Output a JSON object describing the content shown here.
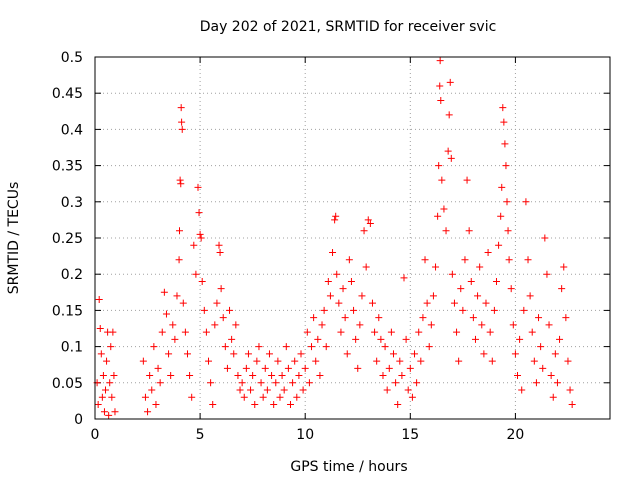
{
  "chart_data": {
    "type": "scatter",
    "title": "Day 202 of 2021, SRMTID for receiver svic",
    "xlabel": "GPS time / hours",
    "ylabel": "SRMTID / TECUs",
    "xlim": [
      0,
      24.5
    ],
    "ylim": [
      0,
      0.5
    ],
    "xticks": [
      0,
      5,
      10,
      15,
      20
    ],
    "xtick_labels": [
      "0",
      "5",
      "10",
      "15",
      "20"
    ],
    "yticks": [
      0,
      0.05,
      0.1,
      0.15,
      0.2,
      0.25,
      0.3,
      0.35,
      0.4,
      0.45,
      0.5
    ],
    "ytick_labels": [
      "0",
      "0.05",
      "0.1",
      "0.15",
      "0.2",
      "0.25",
      "0.3",
      "0.35",
      "0.4",
      "0.45",
      "0.5"
    ],
    "grid": true,
    "marker": "+",
    "series": [
      {
        "name": "SRMTID",
        "color": "#ff0000",
        "points": [
          [
            0.1,
            0.05
          ],
          [
            0.15,
            0.02
          ],
          [
            0.2,
            0.165
          ],
          [
            0.25,
            0.125
          ],
          [
            0.3,
            0.09
          ],
          [
            0.35,
            0.03
          ],
          [
            0.4,
            0.06
          ],
          [
            0.45,
            0.01
          ],
          [
            0.5,
            0.04
          ],
          [
            0.55,
            0.08
          ],
          [
            0.6,
            0.12
          ],
          [
            0.65,
            0.005
          ],
          [
            0.7,
            0.05
          ],
          [
            0.75,
            0.1
          ],
          [
            0.8,
            0.03
          ],
          [
            0.85,
            0.12
          ],
          [
            0.9,
            0.06
          ],
          [
            0.95,
            0.01
          ],
          [
            2.3,
            0.08
          ],
          [
            2.4,
            0.03
          ],
          [
            2.5,
            0.01
          ],
          [
            2.6,
            0.06
          ],
          [
            2.7,
            0.04
          ],
          [
            2.8,
            0.1
          ],
          [
            2.9,
            0.02
          ],
          [
            3.0,
            0.07
          ],
          [
            3.1,
            0.05
          ],
          [
            3.2,
            0.12
          ],
          [
            3.3,
            0.175
          ],
          [
            3.4,
            0.145
          ],
          [
            3.5,
            0.09
          ],
          [
            3.6,
            0.06
          ],
          [
            3.7,
            0.13
          ],
          [
            3.8,
            0.11
          ],
          [
            3.9,
            0.17
          ],
          [
            4.0,
            0.22
          ],
          [
            4.02,
            0.26
          ],
          [
            4.05,
            0.33
          ],
          [
            4.08,
            0.325
          ],
          [
            4.1,
            0.43
          ],
          [
            4.12,
            0.41
          ],
          [
            4.15,
            0.4
          ],
          [
            4.2,
            0.16
          ],
          [
            4.3,
            0.12
          ],
          [
            4.4,
            0.09
          ],
          [
            4.5,
            0.06
          ],
          [
            4.6,
            0.03
          ],
          [
            4.7,
            0.24
          ],
          [
            4.8,
            0.2
          ],
          [
            4.9,
            0.32
          ],
          [
            4.95,
            0.285
          ],
          [
            5.0,
            0.255
          ],
          [
            5.05,
            0.25
          ],
          [
            5.1,
            0.19
          ],
          [
            5.2,
            0.15
          ],
          [
            5.3,
            0.12
          ],
          [
            5.4,
            0.08
          ],
          [
            5.5,
            0.05
          ],
          [
            5.6,
            0.02
          ],
          [
            5.7,
            0.13
          ],
          [
            5.8,
            0.16
          ],
          [
            5.9,
            0.24
          ],
          [
            5.95,
            0.23
          ],
          [
            6.0,
            0.18
          ],
          [
            6.1,
            0.14
          ],
          [
            6.2,
            0.1
          ],
          [
            6.3,
            0.07
          ],
          [
            6.4,
            0.15
          ],
          [
            6.5,
            0.11
          ],
          [
            6.6,
            0.09
          ],
          [
            6.7,
            0.13
          ],
          [
            6.8,
            0.06
          ],
          [
            6.9,
            0.04
          ],
          [
            7.0,
            0.05
          ],
          [
            7.1,
            0.03
          ],
          [
            7.2,
            0.07
          ],
          [
            7.3,
            0.09
          ],
          [
            7.4,
            0.04
          ],
          [
            7.5,
            0.06
          ],
          [
            7.6,
            0.02
          ],
          [
            7.7,
            0.08
          ],
          [
            7.8,
            0.1
          ],
          [
            7.9,
            0.05
          ],
          [
            8.0,
            0.03
          ],
          [
            8.1,
            0.07
          ],
          [
            8.2,
            0.04
          ],
          [
            8.3,
            0.09
          ],
          [
            8.4,
            0.06
          ],
          [
            8.5,
            0.02
          ],
          [
            8.6,
            0.05
          ],
          [
            8.7,
            0.08
          ],
          [
            8.8,
            0.03
          ],
          [
            8.9,
            0.06
          ],
          [
            9.0,
            0.04
          ],
          [
            9.1,
            0.1
          ],
          [
            9.2,
            0.07
          ],
          [
            9.3,
            0.02
          ],
          [
            9.4,
            0.05
          ],
          [
            9.5,
            0.08
          ],
          [
            9.6,
            0.03
          ],
          [
            9.7,
            0.06
          ],
          [
            9.8,
            0.09
          ],
          [
            9.9,
            0.04
          ],
          [
            10.0,
            0.07
          ],
          [
            10.1,
            0.12
          ],
          [
            10.2,
            0.05
          ],
          [
            10.3,
            0.1
          ],
          [
            10.4,
            0.14
          ],
          [
            10.5,
            0.08
          ],
          [
            10.6,
            0.11
          ],
          [
            10.7,
            0.06
          ],
          [
            10.8,
            0.13
          ],
          [
            10.9,
            0.15
          ],
          [
            11.0,
            0.1
          ],
          [
            11.1,
            0.19
          ],
          [
            11.2,
            0.17
          ],
          [
            11.3,
            0.23
          ],
          [
            11.4,
            0.275
          ],
          [
            11.45,
            0.28
          ],
          [
            11.5,
            0.2
          ],
          [
            11.6,
            0.16
          ],
          [
            11.7,
            0.12
          ],
          [
            11.8,
            0.18
          ],
          [
            11.9,
            0.14
          ],
          [
            12.0,
            0.09
          ],
          [
            12.1,
            0.22
          ],
          [
            12.2,
            0.19
          ],
          [
            12.3,
            0.15
          ],
          [
            12.4,
            0.11
          ],
          [
            12.5,
            0.07
          ],
          [
            12.6,
            0.13
          ],
          [
            12.7,
            0.17
          ],
          [
            12.8,
            0.26
          ],
          [
            12.9,
            0.21
          ],
          [
            13.0,
            0.275
          ],
          [
            13.1,
            0.27
          ],
          [
            13.2,
            0.16
          ],
          [
            13.3,
            0.12
          ],
          [
            13.4,
            0.08
          ],
          [
            13.5,
            0.14
          ],
          [
            13.6,
            0.11
          ],
          [
            13.7,
            0.06
          ],
          [
            13.8,
            0.1
          ],
          [
            13.9,
            0.04
          ],
          [
            14.0,
            0.07
          ],
          [
            14.1,
            0.12
          ],
          [
            14.2,
            0.09
          ],
          [
            14.3,
            0.05
          ],
          [
            14.4,
            0.02
          ],
          [
            14.5,
            0.08
          ],
          [
            14.6,
            0.06
          ],
          [
            14.7,
            0.195
          ],
          [
            14.8,
            0.11
          ],
          [
            14.9,
            0.04
          ],
          [
            15.0,
            0.07
          ],
          [
            15.1,
            0.03
          ],
          [
            15.2,
            0.09
          ],
          [
            15.3,
            0.05
          ],
          [
            15.4,
            0.12
          ],
          [
            15.5,
            0.08
          ],
          [
            15.6,
            0.14
          ],
          [
            15.7,
            0.22
          ],
          [
            15.8,
            0.16
          ],
          [
            15.9,
            0.1
          ],
          [
            16.0,
            0.13
          ],
          [
            16.1,
            0.17
          ],
          [
            16.2,
            0.21
          ],
          [
            16.3,
            0.28
          ],
          [
            16.35,
            0.35
          ],
          [
            16.4,
            0.46
          ],
          [
            16.42,
            0.495
          ],
          [
            16.45,
            0.44
          ],
          [
            16.5,
            0.33
          ],
          [
            16.6,
            0.29
          ],
          [
            16.7,
            0.26
          ],
          [
            16.8,
            0.37
          ],
          [
            16.85,
            0.42
          ],
          [
            16.9,
            0.465
          ],
          [
            16.95,
            0.36
          ],
          [
            17.0,
            0.2
          ],
          [
            17.1,
            0.16
          ],
          [
            17.2,
            0.12
          ],
          [
            17.3,
            0.08
          ],
          [
            17.4,
            0.18
          ],
          [
            17.5,
            0.15
          ],
          [
            17.6,
            0.22
          ],
          [
            17.7,
            0.33
          ],
          [
            17.8,
            0.26
          ],
          [
            17.9,
            0.19
          ],
          [
            18.0,
            0.14
          ],
          [
            18.1,
            0.11
          ],
          [
            18.2,
            0.17
          ],
          [
            18.3,
            0.21
          ],
          [
            18.4,
            0.13
          ],
          [
            18.5,
            0.09
          ],
          [
            18.6,
            0.16
          ],
          [
            18.7,
            0.23
          ],
          [
            18.8,
            0.12
          ],
          [
            18.9,
            0.08
          ],
          [
            19.0,
            0.15
          ],
          [
            19.1,
            0.19
          ],
          [
            19.2,
            0.24
          ],
          [
            19.3,
            0.28
          ],
          [
            19.35,
            0.32
          ],
          [
            19.4,
            0.43
          ],
          [
            19.45,
            0.41
          ],
          [
            19.5,
            0.38
          ],
          [
            19.55,
            0.35
          ],
          [
            19.6,
            0.3
          ],
          [
            19.65,
            0.26
          ],
          [
            19.7,
            0.22
          ],
          [
            19.8,
            0.18
          ],
          [
            19.9,
            0.13
          ],
          [
            20.0,
            0.09
          ],
          [
            20.1,
            0.06
          ],
          [
            20.2,
            0.11
          ],
          [
            20.3,
            0.04
          ],
          [
            20.4,
            0.15
          ],
          [
            20.5,
            0.3
          ],
          [
            20.6,
            0.22
          ],
          [
            20.7,
            0.17
          ],
          [
            20.8,
            0.12
          ],
          [
            20.9,
            0.08
          ],
          [
            21.0,
            0.05
          ],
          [
            21.1,
            0.14
          ],
          [
            21.2,
            0.1
          ],
          [
            21.3,
            0.07
          ],
          [
            21.4,
            0.25
          ],
          [
            21.5,
            0.2
          ],
          [
            21.6,
            0.13
          ],
          [
            21.7,
            0.06
          ],
          [
            21.8,
            0.03
          ],
          [
            21.9,
            0.09
          ],
          [
            22.0,
            0.05
          ],
          [
            22.1,
            0.11
          ],
          [
            22.2,
            0.18
          ],
          [
            22.3,
            0.21
          ],
          [
            22.4,
            0.14
          ],
          [
            22.5,
            0.08
          ],
          [
            22.6,
            0.04
          ],
          [
            22.7,
            0.02
          ]
        ]
      }
    ]
  }
}
